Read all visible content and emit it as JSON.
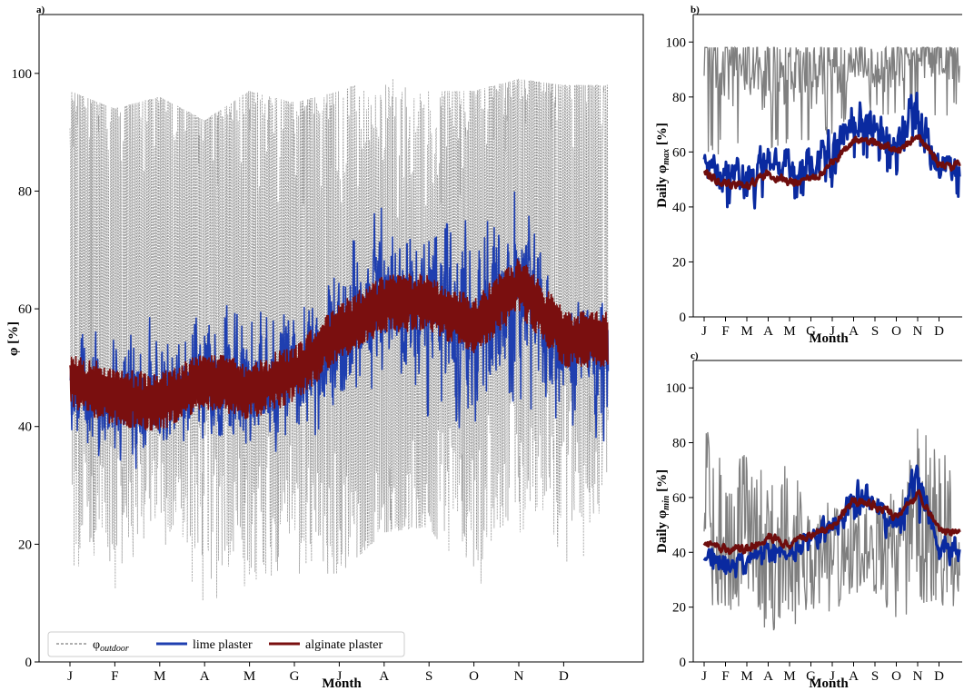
{
  "colors": {
    "outdoor": "#7f7f7f",
    "lime": "#1f3fb0",
    "alginate": "#7a0f0f",
    "limeDaily": "#0a2aa0",
    "alginateDaily": "#6e0d0d"
  },
  "chart_data": [
    {
      "panel": "a)",
      "type": "line",
      "title": "",
      "xlabel": "Month",
      "ylabel": "φ [%]",
      "ylim": [
        0,
        110
      ],
      "yticks": [
        0,
        20,
        40,
        60,
        80,
        100
      ],
      "xlim": [
        -0.5,
        12
      ],
      "months": [
        "J",
        "F",
        "M",
        "A",
        "M",
        "G",
        "J",
        "A",
        "S",
        "O",
        "N",
        "D"
      ],
      "legend": [
        "φoutdoor",
        "lime plaster",
        "alginate plaster"
      ],
      "legend_position": "lower-left",
      "series": [
        {
          "name": "φoutdoor",
          "style": "dashed",
          "monthly_mean": [
            66,
            63,
            65,
            62,
            60,
            58,
            56,
            56,
            58,
            62,
            70,
            68
          ],
          "monthly_min": [
            15,
            11,
            18,
            10,
            12,
            15,
            15,
            22,
            23,
            11,
            18,
            16
          ],
          "monthly_max": [
            97,
            94,
            96,
            92,
            97,
            95,
            97,
            100,
            97,
            97,
            99,
            98
          ]
        },
        {
          "name": "lime plaster",
          "style": "solid",
          "monthly_mean": [
            46,
            44,
            45,
            47,
            46,
            50,
            55,
            62,
            61,
            54,
            64,
            52
          ],
          "monthly_min": [
            37,
            27,
            32,
            33,
            31,
            33,
            34,
            38,
            36,
            33,
            34,
            32
          ],
          "monthly_max": [
            60,
            60,
            61,
            66,
            64,
            67,
            75,
            85,
            83,
            78,
            88,
            63
          ]
        },
        {
          "name": "alginate plaster",
          "style": "solid",
          "monthly_mean": [
            48,
            45,
            44,
            48,
            46,
            49,
            56,
            61,
            61,
            57,
            64,
            55
          ]
        }
      ]
    },
    {
      "panel": "b)",
      "type": "line",
      "title": "",
      "xlabel": "Month",
      "ylabel": "Daily φmax [%]",
      "ylim": [
        0,
        110
      ],
      "yticks": [
        0,
        20,
        40,
        60,
        80,
        100
      ],
      "months": [
        "J",
        "F",
        "M",
        "A",
        "M",
        "G",
        "J",
        "A",
        "S",
        "O",
        "N",
        "D"
      ],
      "series": [
        {
          "name": "φoutdoor",
          "monthly_mean": [
            93,
            90,
            92,
            88,
            90,
            89,
            90,
            93,
            92,
            90,
            95,
            94
          ],
          "monthly_min": [
            60,
            58,
            60,
            58,
            62,
            60,
            65,
            75,
            72,
            70,
            74,
            72
          ]
        },
        {
          "name": "lime plaster",
          "monthly_mean": [
            54,
            50,
            52,
            57,
            54,
            55,
            60,
            70,
            67,
            62,
            72,
            54
          ],
          "monthly_min": [
            40,
            29,
            35,
            40,
            36,
            38,
            42,
            50,
            48,
            38,
            35,
            34
          ],
          "monthly_max": [
            61,
            59,
            62,
            69,
            64,
            65,
            74,
            84,
            78,
            75,
            88,
            60
          ]
        },
        {
          "name": "alginate plaster",
          "monthly_mean": [
            53,
            48,
            48,
            52,
            49,
            50,
            56,
            64,
            64,
            60,
            66,
            55
          ]
        }
      ]
    },
    {
      "panel": "c)",
      "type": "line",
      "title": "",
      "xlabel": "Month",
      "ylabel": "Daily φmin [%]",
      "ylim": [
        0,
        110
      ],
      "yticks": [
        0,
        20,
        40,
        60,
        80,
        100
      ],
      "months": [
        "J",
        "F",
        "M",
        "A",
        "M",
        "G",
        "J",
        "A",
        "S",
        "O",
        "N",
        "D"
      ],
      "series": [
        {
          "name": "φoutdoor",
          "monthly_mean": [
            55,
            45,
            50,
            38,
            42,
            38,
            36,
            40,
            42,
            38,
            55,
            48
          ],
          "monthly_min": [
            20,
            15,
            22,
            10,
            12,
            18,
            18,
            25,
            25,
            11,
            22,
            18
          ],
          "monthly_max": [
            88,
            94,
            85,
            78,
            86,
            72,
            70,
            65,
            66,
            72,
            95,
            88
          ]
        },
        {
          "name": "lime plaster",
          "monthly_mean": [
            39,
            35,
            38,
            41,
            40,
            45,
            50,
            60,
            57,
            50,
            66,
            42
          ],
          "monthly_min": [
            32,
            27,
            30,
            33,
            32,
            38,
            42,
            48,
            45,
            40,
            42,
            33
          ],
          "monthly_max": [
            46,
            42,
            44,
            48,
            46,
            50,
            58,
            71,
            64,
            60,
            77,
            50
          ]
        },
        {
          "name": "alginate plaster",
          "monthly_mean": [
            43,
            41,
            41,
            46,
            43,
            46,
            50,
            59,
            57,
            53,
            62,
            47
          ]
        }
      ]
    }
  ]
}
